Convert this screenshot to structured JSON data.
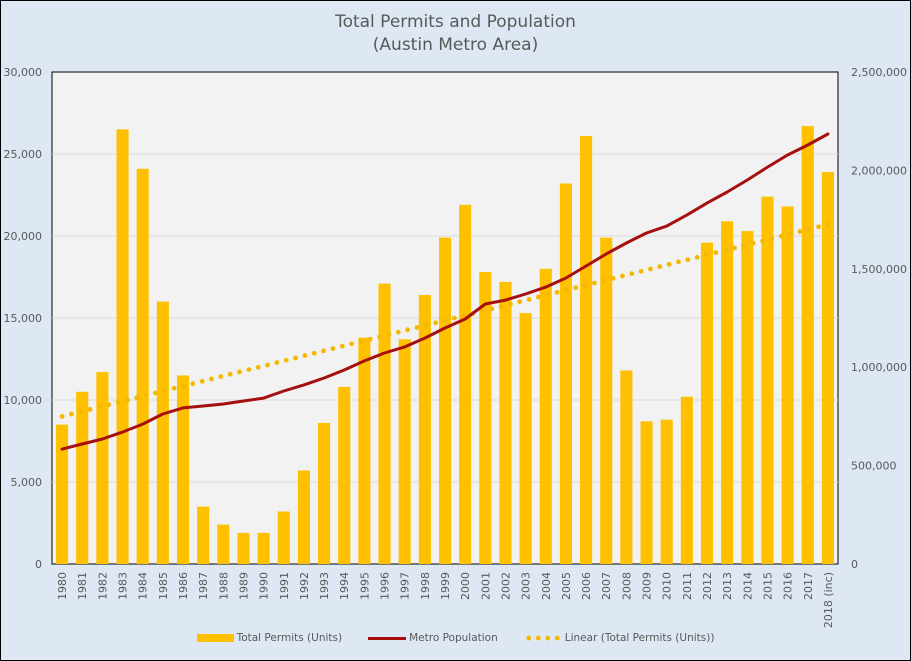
{
  "chart_data": {
    "type": "bar",
    "title": "Total Permits and Population",
    "subtitle": "(Austin Metro Area)",
    "xlabel": "",
    "ylabel": "",
    "y2label": "",
    "categories": [
      "1980",
      "1981",
      "1982",
      "1983",
      "1984",
      "1985",
      "1986",
      "1987",
      "1988",
      "1989",
      "1990",
      "1991",
      "1992",
      "1993",
      "1994",
      "1995",
      "1996",
      "1997",
      "1998",
      "1999",
      "2000",
      "2001",
      "2002",
      "2003",
      "2004",
      "2005",
      "2006",
      "2007",
      "2008",
      "2009",
      "2010",
      "2011",
      "2012",
      "2013",
      "2014",
      "2015",
      "2016",
      "2017",
      "2018 (inc)"
    ],
    "series": [
      {
        "name": "Total Permits (Units)",
        "type": "bar",
        "axis": "left",
        "color": "#ffc000",
        "values": [
          8500,
          10500,
          11700,
          26500,
          24100,
          16000,
          11500,
          3500,
          2400,
          1900,
          1900,
          3200,
          5700,
          8600,
          10800,
          13800,
          17100,
          13700,
          16400,
          19900,
          21900,
          17800,
          17200,
          15300,
          18000,
          23200,
          26100,
          19900,
          11800,
          8700,
          8800,
          10200,
          19600,
          20900,
          20300,
          22400,
          21800,
          26700,
          23900
        ]
      },
      {
        "name": "Metro Population",
        "type": "line",
        "axis": "right",
        "color": "#a50f0f",
        "values": [
          584000,
          610000,
          635000,
          670000,
          711000,
          762000,
          793000,
          803000,
          813000,
          828000,
          843000,
          879000,
          910000,
          945000,
          986000,
          1032000,
          1072000,
          1103000,
          1148000,
          1199000,
          1245000,
          1321000,
          1341000,
          1372000,
          1407000,
          1453000,
          1514000,
          1575000,
          1631000,
          1682000,
          1717000,
          1773000,
          1834000,
          1890000,
          1951000,
          2017000,
          2078000,
          2129000,
          2185000
        ]
      },
      {
        "name": "Linear (Total Permits (Units))",
        "type": "trendline",
        "axis": "left",
        "color": "#f5b800",
        "start": 9000,
        "end": 20700
      }
    ],
    "y_left": {
      "range": [
        0,
        30000
      ],
      "ticks": [
        "0",
        "5,000",
        "10,000",
        "15,000",
        "20,000",
        "25,000",
        "30,000"
      ],
      "tick_values": [
        0,
        5000,
        10000,
        15000,
        20000,
        25000,
        30000
      ]
    },
    "y_right": {
      "range": [
        0,
        2500000
      ],
      "ticks": [
        "0",
        "500,000",
        "1,000,000",
        "1,500,000",
        "2,000,000",
        "2,500,000"
      ],
      "tick_values": [
        0,
        500000,
        1000000,
        1500000,
        2000000,
        2500000
      ]
    },
    "grid": true,
    "legend": "bottom"
  },
  "legend": {
    "items": [
      "Total Permits (Units)",
      "Metro Population",
      "Linear (Total Permits (Units))"
    ]
  }
}
